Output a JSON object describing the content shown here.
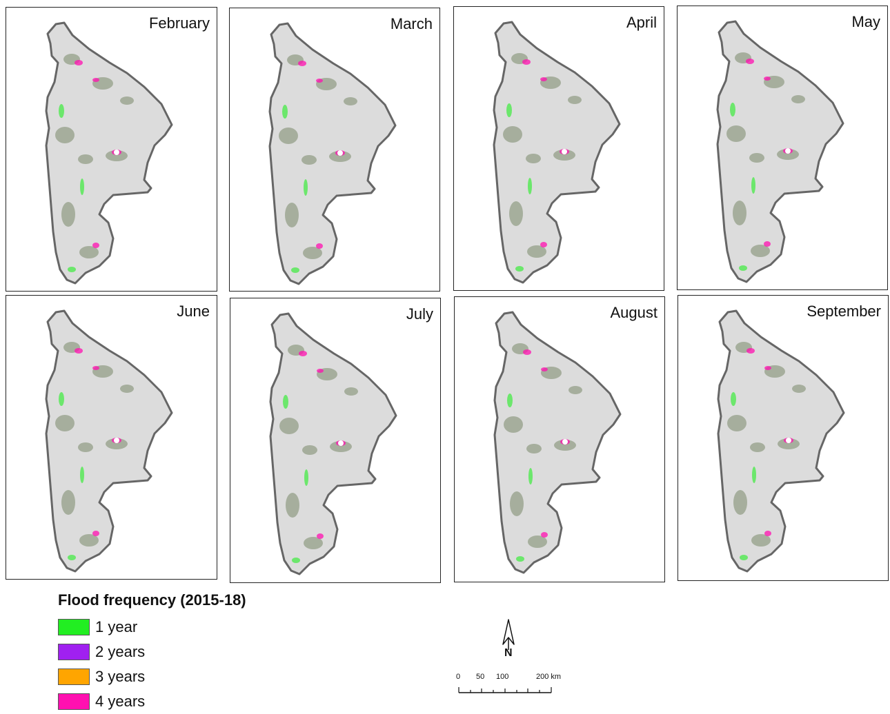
{
  "panels": [
    {
      "title": "February"
    },
    {
      "title": "March"
    },
    {
      "title": "April"
    },
    {
      "title": "May"
    },
    {
      "title": "June"
    },
    {
      "title": "July"
    },
    {
      "title": "August"
    },
    {
      "title": "September"
    }
  ],
  "legend": {
    "title": "Flood frequency (2015-18)",
    "items": [
      {
        "label": "1 year",
        "color": "#22ee22"
      },
      {
        "label": "2 years",
        "color": "#a020f0"
      },
      {
        "label": "3 years",
        "color": "#ffa500"
      },
      {
        "label": "4 years",
        "color": "#ff10b0"
      }
    ]
  },
  "north_arrow": {
    "label": "N"
  },
  "scale_bar": {
    "tick_labels": [
      "0",
      "50",
      "100",
      "200 km"
    ]
  },
  "colors": {
    "land": "#dcdcdc",
    "boundary": "#666666",
    "vegetation": "#7a8a6a"
  }
}
